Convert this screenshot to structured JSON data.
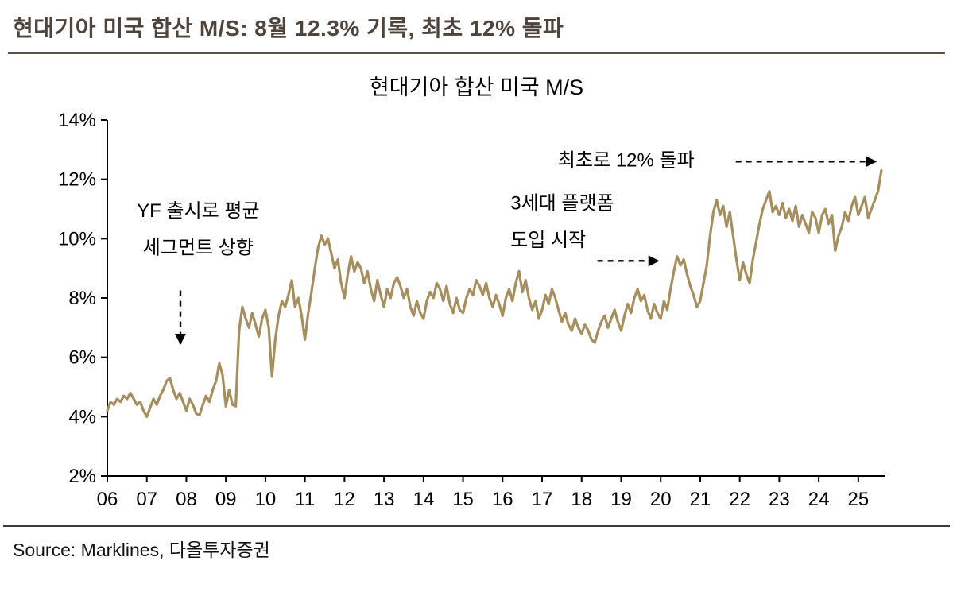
{
  "header": {
    "title": "현대기아 미국 합산 M/S: 8월 12.3% 기록, 최초 12% 돌파"
  },
  "source": {
    "label": "Source: Marklines,  다올투자증권"
  },
  "colors": {
    "line": "#A68F5E",
    "title": "#4F443C",
    "rule": "#5E5047",
    "axis": "#000000"
  },
  "chart_data": {
    "type": "line",
    "title": "현대기아 합산 미국 M/S",
    "xlabel": "",
    "ylabel": "",
    "unit": "%",
    "grid": false,
    "legend": "none",
    "xlim": [
      2006.0,
      2025.6667
    ],
    "ylim": [
      2,
      14
    ],
    "y_ticks": [
      2,
      4,
      6,
      8,
      10,
      12,
      14
    ],
    "x_ticks": [
      "06",
      "07",
      "08",
      "09",
      "10",
      "11",
      "12",
      "13",
      "14",
      "15",
      "16",
      "17",
      "18",
      "19",
      "20",
      "21",
      "22",
      "23",
      "24",
      "25"
    ],
    "x_tick_years": [
      2006,
      2007,
      2008,
      2009,
      2010,
      2011,
      2012,
      2013,
      2014,
      2015,
      2016,
      2017,
      2018,
      2019,
      2020,
      2021,
      2022,
      2023,
      2024,
      2025
    ],
    "x_start": 2006.0,
    "x_step_months": 1,
    "series_name": "현대기아 합산 미국 M/S (%)",
    "values": [
      4.2,
      4.5,
      4.4,
      4.6,
      4.5,
      4.7,
      4.6,
      4.8,
      4.6,
      4.4,
      4.5,
      4.2,
      4.0,
      4.3,
      4.6,
      4.4,
      4.7,
      4.9,
      5.2,
      5.3,
      4.9,
      4.6,
      4.8,
      4.5,
      4.2,
      4.6,
      4.4,
      4.1,
      4.05,
      4.4,
      4.7,
      4.5,
      4.9,
      5.2,
      5.8,
      5.4,
      4.35,
      4.9,
      4.4,
      4.35,
      6.9,
      7.7,
      7.3,
      7.0,
      7.5,
      7.1,
      6.7,
      7.3,
      7.6,
      7.0,
      5.35,
      6.6,
      7.4,
      7.9,
      7.7,
      8.1,
      8.6,
      7.7,
      8.0,
      7.4,
      6.6,
      7.5,
      8.2,
      9.0,
      9.7,
      10.1,
      9.8,
      10.0,
      9.5,
      9.0,
      9.3,
      8.5,
      8.0,
      8.8,
      9.4,
      8.9,
      9.2,
      9.0,
      8.5,
      8.9,
      8.3,
      7.9,
      8.6,
      8.1,
      7.7,
      8.3,
      8.0,
      8.5,
      8.7,
      8.4,
      8.0,
      8.3,
      7.7,
      7.4,
      7.9,
      7.5,
      7.3,
      7.9,
      8.2,
      8.0,
      8.5,
      8.3,
      7.9,
      8.4,
      7.8,
      7.5,
      8.0,
      7.6,
      7.5,
      8.0,
      8.3,
      8.1,
      8.6,
      8.4,
      8.1,
      8.5,
      8.0,
      7.7,
      8.1,
      7.8,
      7.4,
      8.0,
      8.3,
      7.9,
      8.5,
      8.9,
      8.2,
      8.6,
      8.0,
      7.6,
      7.9,
      7.3,
      7.6,
      8.1,
      7.8,
      8.3,
      8.0,
      7.6,
      7.2,
      7.5,
      7.1,
      6.9,
      7.3,
      7.0,
      6.8,
      7.1,
      6.9,
      6.6,
      6.5,
      6.9,
      7.2,
      7.4,
      7.0,
      7.3,
      7.6,
      7.2,
      6.9,
      7.4,
      7.8,
      7.5,
      8.0,
      8.3,
      7.9,
      8.1,
      7.6,
      7.3,
      7.8,
      7.5,
      7.3,
      7.9,
      7.6,
      8.3,
      8.9,
      9.4,
      9.1,
      9.3,
      8.8,
      8.4,
      8.1,
      7.7,
      7.9,
      8.5,
      9.1,
      10.1,
      10.9,
      11.3,
      10.8,
      11.1,
      10.4,
      10.9,
      10.1,
      9.3,
      8.6,
      9.2,
      8.8,
      8.5,
      9.3,
      9.9,
      10.5,
      11.0,
      11.3,
      11.6,
      10.9,
      11.1,
      10.8,
      11.2,
      10.7,
      11.0,
      10.6,
      11.1,
      10.4,
      10.8,
      10.5,
      10.2,
      10.9,
      10.7,
      10.2,
      10.8,
      11.0,
      10.5,
      10.8,
      9.6,
      10.1,
      10.4,
      10.9,
      10.6,
      11.1,
      11.4,
      10.8,
      11.1,
      11.4,
      10.7,
      11.0,
      11.3,
      11.6,
      12.3
    ],
    "annotations": [
      {
        "id": "yf-launch",
        "lines": [
          "YF 출시로 평균",
          "세그먼트 상향"
        ],
        "x": 2008.3,
        "y": 10.95,
        "line_step": 1.25,
        "anchor": "middle",
        "arrow": {
          "x1": 2007.85,
          "y1": 8.25,
          "x2": 2007.85,
          "y2": 6.45
        }
      },
      {
        "id": "gen3-platform",
        "lines": [
          "3세대 플랫폼",
          "도입 시작"
        ],
        "x": 2016.2,
        "y": 11.2,
        "line_step": 1.25,
        "anchor": "start",
        "arrow": {
          "x1": 2018.4,
          "y1": 9.25,
          "x2": 2019.95,
          "y2": 9.25
        }
      },
      {
        "id": "first-12-percent",
        "lines": [
          "최초로 12% 돌파"
        ],
        "x": 2017.4,
        "y": 12.65,
        "line_step": 1.25,
        "anchor": "start",
        "arrow": {
          "x1": 2021.9,
          "y1": 12.6,
          "x2": 2025.45,
          "y2": 12.6
        }
      }
    ]
  }
}
